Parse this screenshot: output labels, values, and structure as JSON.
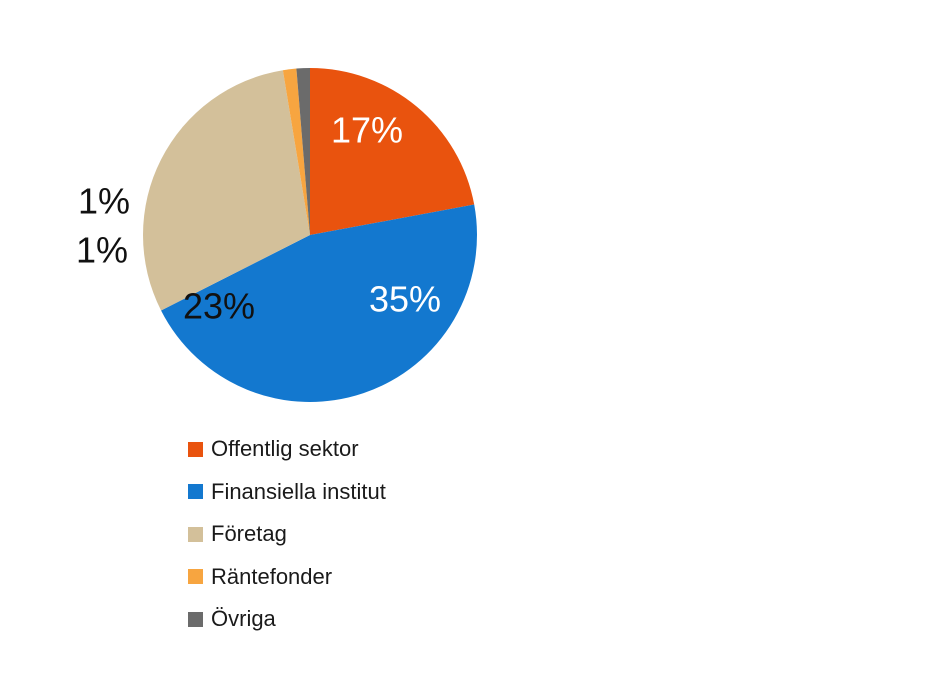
{
  "chart_data": {
    "type": "pie",
    "title": "",
    "start_angle_deg": 90,
    "direction": "clockwise",
    "slices": [
      {
        "label": "Offentlig sektor",
        "value": 17,
        "display": "17%",
        "color": "#E9530E",
        "label_color": "#ffffff"
      },
      {
        "label": "Finansiella institut",
        "value": 35,
        "display": "35%",
        "color": "#1378CF",
        "label_color": "#ffffff"
      },
      {
        "label": "Företag",
        "value": 23,
        "display": "23%",
        "color": "#D3C09A",
        "label_color": "#111111"
      },
      {
        "label": "Räntefonder",
        "value": 1,
        "display": "1%",
        "color": "#F7A540",
        "label_color": "#111111"
      },
      {
        "label": "Övriga",
        "value": 1,
        "display": "1%",
        "color": "#6B6B6B",
        "label_color": "#111111"
      }
    ],
    "legend_position": "bottom"
  }
}
